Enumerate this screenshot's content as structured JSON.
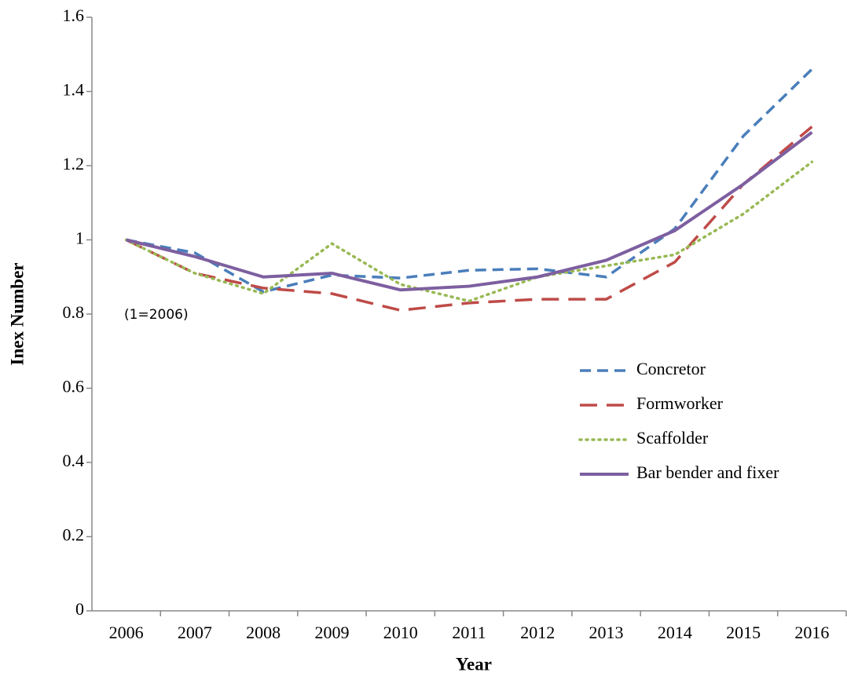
{
  "chart_data": {
    "type": "line",
    "x_label": "Year",
    "y_label": "Inex Number",
    "annotation": "(1=2006)",
    "categories": [
      "2006",
      "2007",
      "2008",
      "2009",
      "2010",
      "2011",
      "2012",
      "2013",
      "2014",
      "2015",
      "2016"
    ],
    "ylim": [
      0,
      1.6
    ],
    "yticks": [
      0,
      0.2,
      0.4,
      0.6,
      0.8,
      1,
      1.2,
      1.4,
      1.6
    ],
    "series": [
      {
        "name": "Concretor",
        "color": "#4a7ebb",
        "dash": "dashed",
        "values": [
          1.0,
          0.965,
          0.86,
          0.905,
          0.897,
          0.918,
          0.922,
          0.9,
          1.03,
          1.28,
          1.46
        ]
      },
      {
        "name": "Formworker",
        "color": "#be4b48",
        "dash": "long-dashed",
        "values": [
          1.0,
          0.91,
          0.87,
          0.855,
          0.81,
          0.83,
          0.84,
          0.84,
          0.94,
          1.15,
          1.305
        ]
      },
      {
        "name": "Scaffolder",
        "color": "#98b954",
        "dash": "dotted",
        "values": [
          1.0,
          0.91,
          0.855,
          0.99,
          0.88,
          0.835,
          0.9,
          0.93,
          0.96,
          1.07,
          1.21
        ]
      },
      {
        "name": "Bar bender and fixer",
        "color": "#7d5fa0",
        "dash": "solid",
        "values": [
          1.0,
          0.955,
          0.9,
          0.91,
          0.865,
          0.875,
          0.9,
          0.945,
          1.025,
          1.15,
          1.29
        ]
      }
    ]
  }
}
